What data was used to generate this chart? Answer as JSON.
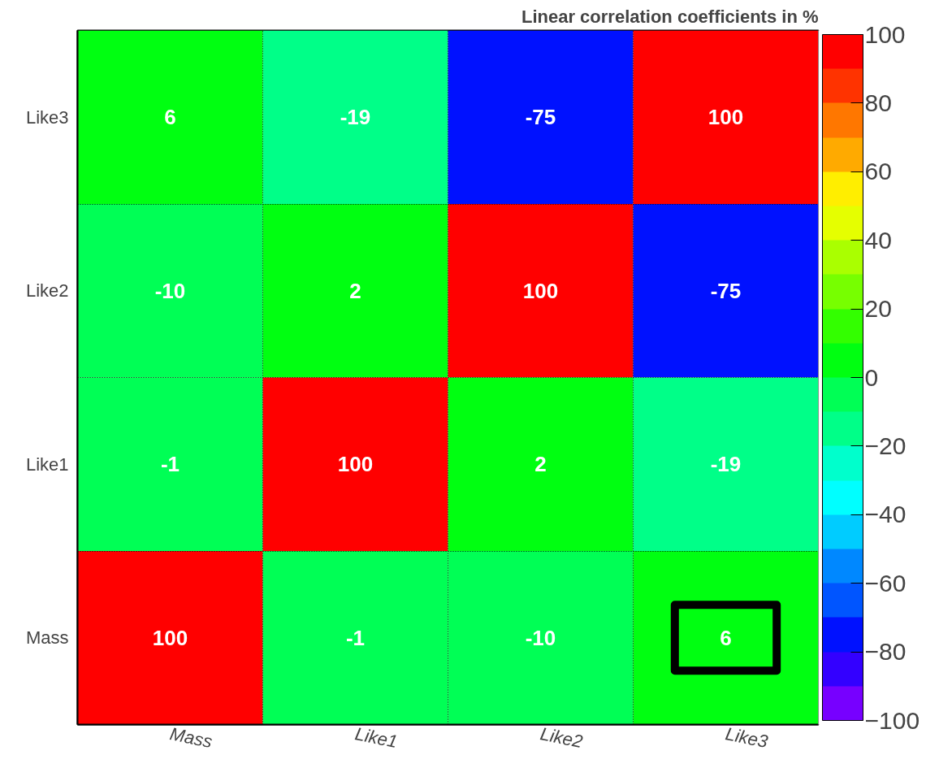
{
  "chart_data": {
    "type": "heatmap",
    "title": "Linear correlation coefficients in %",
    "categories": [
      "Mass",
      "Like1",
      "Like2",
      "Like3"
    ],
    "y_categories": [
      "Like3",
      "Like2",
      "Like1",
      "Mass"
    ],
    "cells": [
      [
        6,
        -19,
        -75,
        100
      ],
      [
        -10,
        2,
        100,
        -75
      ],
      [
        -1,
        100,
        2,
        -19
      ],
      [
        100,
        -1,
        -10,
        6
      ]
    ],
    "data_labels": true,
    "grid": true,
    "clim": [
      -100,
      100
    ],
    "cticks": [
      {
        "value": -100,
        "label": "−100"
      },
      {
        "value": -80,
        "label": "−80"
      },
      {
        "value": -60,
        "label": "−60"
      },
      {
        "value": -40,
        "label": "−40"
      },
      {
        "value": -20,
        "label": "−20"
      },
      0,
      20,
      40,
      60,
      80,
      100
    ],
    "colors": [
      "#7700ff",
      "#3300ff",
      "#0011ff",
      "#0055ff",
      "#0088ff",
      "#00ccff",
      "#00ffff",
      "#00ffcc",
      "#00ff88",
      "#00ff55",
      "#00ff11",
      "#33ff00",
      "#77ff00",
      "#aaff00",
      "#e5ff00",
      "#ffee00",
      "#ffaa00",
      "#ff7700",
      "#ff3300",
      "#ff0000"
    ]
  }
}
